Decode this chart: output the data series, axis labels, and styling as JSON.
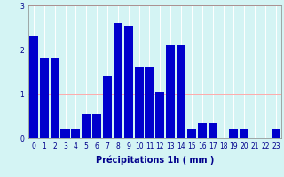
{
  "categories": [
    0,
    1,
    2,
    3,
    4,
    5,
    6,
    7,
    8,
    9,
    10,
    11,
    12,
    13,
    14,
    15,
    16,
    17,
    18,
    19,
    20,
    21,
    22,
    23
  ],
  "values": [
    2.3,
    1.8,
    1.8,
    0.2,
    0.2,
    0.55,
    0.55,
    1.4,
    2.6,
    2.55,
    1.6,
    1.6,
    1.05,
    2.1,
    2.1,
    0.2,
    0.35,
    0.35,
    0.0,
    0.2,
    0.2,
    0.0,
    0.0,
    0.2
  ],
  "bar_color": "#0000cc",
  "background_color": "#d4f4f4",
  "grid_color": "#ffffff",
  "grid_hcolor": "#ffaaaa",
  "ylim": [
    0,
    3
  ],
  "yticks": [
    0,
    1,
    2,
    3
  ],
  "xlabel": "Précipitations 1h ( mm )",
  "xlabel_fontsize": 7,
  "tick_fontsize": 5.5,
  "bar_width": 0.85
}
